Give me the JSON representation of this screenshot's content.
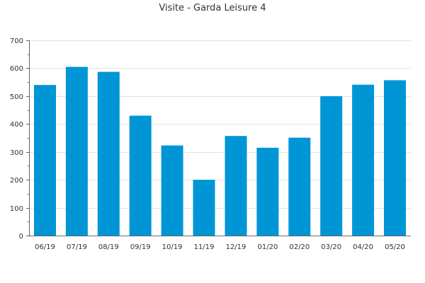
{
  "chart_data": {
    "type": "bar",
    "title": "Visite - Garda Leisure 4",
    "xlabel": "",
    "ylabel": "",
    "categories": [
      "06/19",
      "07/19",
      "08/19",
      "09/19",
      "10/19",
      "11/19",
      "12/19",
      "01/20",
      "02/20",
      "03/20",
      "04/20",
      "05/20"
    ],
    "values": [
      540,
      605,
      587,
      430,
      323,
      200,
      357,
      315,
      351,
      500,
      541,
      557
    ],
    "ylim": [
      0,
      700
    ],
    "yticks": [
      0,
      100,
      200,
      300,
      400,
      500,
      600,
      700
    ],
    "grid": true,
    "legend": "none",
    "bar_color": "#0096d6",
    "grid_color": "#e2e2e2",
    "axis_color": "#666666"
  }
}
